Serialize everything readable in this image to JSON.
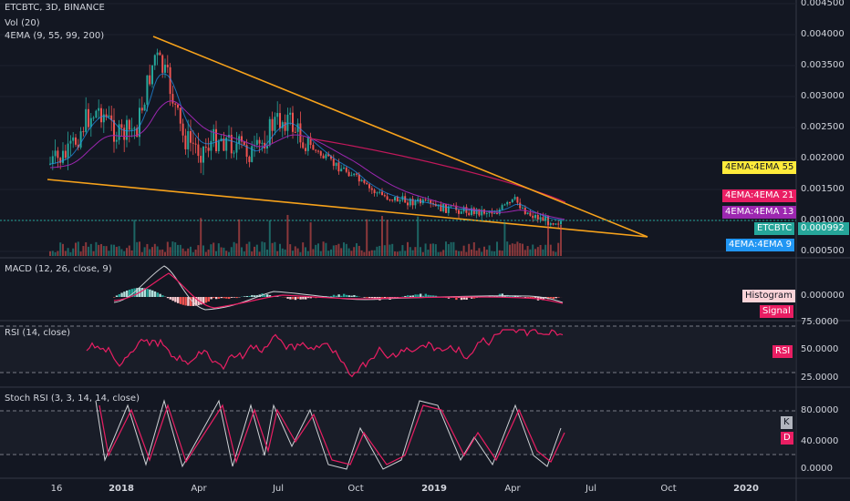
{
  "legends": {
    "main_title": "ETCBTC, 3D, BINANCE",
    "volume": "Vol (20)",
    "ema": "4EMA (9, 55, 99, 200)",
    "macd": "MACD (12, 26, close, 9)",
    "rsi": "RSI (14, close)",
    "stoch": "Stoch RSI (3, 3, 14, 14, close)"
  },
  "price_axis": [
    "0.004500",
    "0.004000",
    "0.003500",
    "0.003000",
    "0.002500",
    "0.002000",
    "0.001500",
    "0.001000",
    "0.000500"
  ],
  "macd_axis": [
    "0.000000"
  ],
  "rsi_axis": [
    "75.0000",
    "50.0000",
    "25.0000"
  ],
  "stoch_axis": [
    "80.0000",
    "40.0000",
    "0.0000"
  ],
  "tags": {
    "ema55": "4EMA:4EMA 55",
    "ema21": "4EMA:4EMA 21",
    "ema13": "4EMA:4EMA 13",
    "symbol": "ETCBTC",
    "price": "0.000992",
    "ema9": "4EMA:4EMA 9",
    "histogram": "Histogram",
    "signal": "Signal",
    "rsi": "RSI",
    "k": "K",
    "d": "D"
  },
  "time_axis": [
    "16",
    "2018",
    "Apr",
    "Jul",
    "Oct",
    "2019",
    "Apr",
    "Jul",
    "Oct",
    "2020"
  ],
  "colors": {
    "background": "#131722",
    "up": "#26a69a",
    "down": "#ef5350",
    "trendline": "#f7a21b",
    "ema_fast": "#e91e63",
    "ema_slow": "#9c27b0",
    "rsi_line": "#e91e63",
    "stoch_k": "#cfd2d6",
    "stoch_d": "#e91e63",
    "price_tag": "#26a69a",
    "ema55_tag": "#ffeb3b",
    "ema21_tag": "#e91e63",
    "ema13_tag": "#9c27b0",
    "ema9_tag": "#2196f3"
  }
}
